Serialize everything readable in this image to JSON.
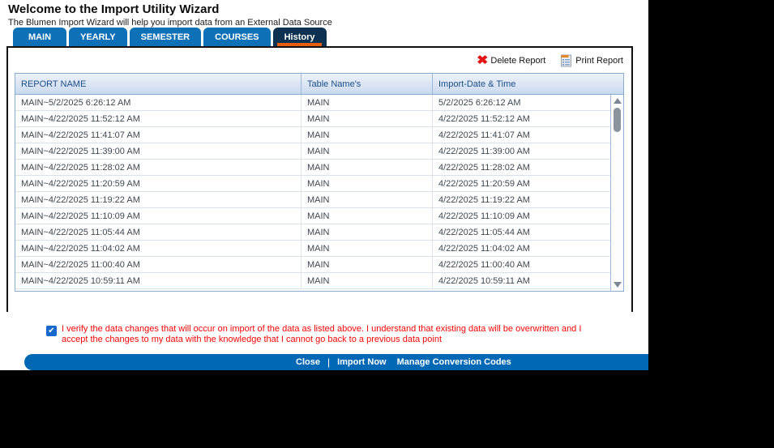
{
  "header": {
    "title": "Welcome to the Import Utility Wizard",
    "subtitle": "The Blumen Import Wizard will help you import data from an External Data Source"
  },
  "tabs": [
    {
      "label": "MAIN",
      "active": false
    },
    {
      "label": "YEARLY",
      "active": false
    },
    {
      "label": "SEMESTER",
      "active": false
    },
    {
      "label": "COURSES",
      "active": false
    },
    {
      "label": "History",
      "active": true
    }
  ],
  "toolbar": {
    "delete_label": "Delete Report",
    "print_label": "Print Report",
    "delete_icon": "red-x-icon",
    "print_icon": "report-printer-icon"
  },
  "table": {
    "columns": [
      "REPORT NAME",
      "Table Name's",
      "Import-Date & Time"
    ],
    "rows": [
      {
        "report_name": "MAIN~5/2/2025 6:26:12 AM",
        "table_name": "MAIN",
        "import_date": "5/2/2025 6:26:12 AM"
      },
      {
        "report_name": "MAIN~4/22/2025 11:52:12 AM",
        "table_name": "MAIN",
        "import_date": "4/22/2025 11:52:12 AM"
      },
      {
        "report_name": "MAIN~4/22/2025 11:41:07 AM",
        "table_name": "MAIN",
        "import_date": "4/22/2025 11:41:07 AM"
      },
      {
        "report_name": "MAIN~4/22/2025 11:39:00 AM",
        "table_name": "MAIN",
        "import_date": "4/22/2025 11:39:00 AM"
      },
      {
        "report_name": "MAIN~4/22/2025 11:28:02 AM",
        "table_name": "MAIN",
        "import_date": "4/22/2025 11:28:02 AM"
      },
      {
        "report_name": "MAIN~4/22/2025 11:20:59 AM",
        "table_name": "MAIN",
        "import_date": "4/22/2025 11:20:59 AM"
      },
      {
        "report_name": "MAIN~4/22/2025 11:19:22 AM",
        "table_name": "MAIN",
        "import_date": "4/22/2025 11:19:22 AM"
      },
      {
        "report_name": "MAIN~4/22/2025 11:10:09 AM",
        "table_name": "MAIN",
        "import_date": "4/22/2025 11:10:09 AM"
      },
      {
        "report_name": "MAIN~4/22/2025 11:05:44 AM",
        "table_name": "MAIN",
        "import_date": "4/22/2025 11:05:44 AM"
      },
      {
        "report_name": "MAIN~4/22/2025 11:04:02 AM",
        "table_name": "MAIN",
        "import_date": "4/22/2025 11:04:02 AM"
      },
      {
        "report_name": "MAIN~4/22/2025 11:00:40 AM",
        "table_name": "MAIN",
        "import_date": "4/22/2025 11:00:40 AM"
      },
      {
        "report_name": "MAIN~4/22/2025 10:59:11 AM",
        "table_name": "MAIN",
        "import_date": "4/22/2025 10:59:11 AM"
      }
    ]
  },
  "confirmation": {
    "checked": true,
    "checkmark": "✔",
    "text": "I verify the data changes that will occur on import of the data as listed above. I understand that existing data will be overwritten and I accept the changes to my data with the knowledge that I cannot go back to a previous data point"
  },
  "footer": {
    "links": [
      "Close",
      "Import Now",
      "Manage Conversion Codes"
    ],
    "separator": "|"
  },
  "colors": {
    "tab_blue": "#0e71b8",
    "active_tab": "#0d3150",
    "accent_orange": "#e8600f",
    "footer_blue": "#0168b5",
    "alert_red": "#fb0505",
    "header_text": "#1d4e89"
  }
}
